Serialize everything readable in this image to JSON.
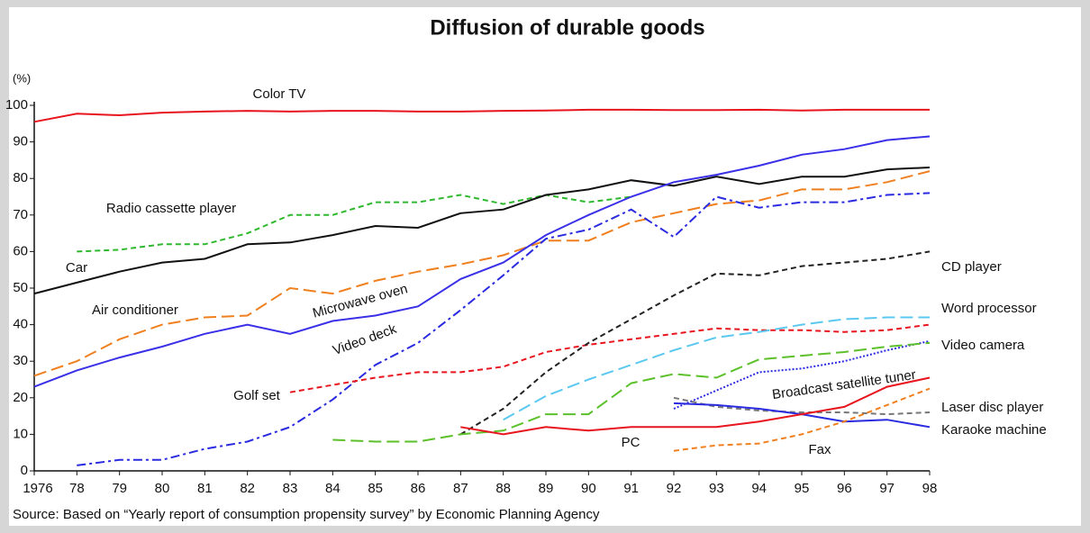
{
  "chart_data": {
    "type": "line",
    "title": "Diffusion of durable goods",
    "y_label": "(%)",
    "source": "Source: Based on “Yearly report of consumption propensity survey” by Economic Planning Agency",
    "categories": [
      "1976",
      "78",
      "79",
      "80",
      "81",
      "82",
      "83",
      "84",
      "85",
      "86",
      "87",
      "88",
      "89",
      "90",
      "91",
      "92",
      "93",
      "94",
      "95",
      "96",
      "97",
      "98"
    ],
    "ylim": [
      0,
      100
    ],
    "yticks": [
      0,
      10,
      20,
      30,
      40,
      50,
      60,
      70,
      80,
      90,
      100
    ],
    "series": [
      {
        "name": "Color TV",
        "color": "#e8141e",
        "style": "solid",
        "values": [
          95.5,
          97.7,
          97.3,
          98,
          98.3,
          98.5,
          98.3,
          98.5,
          98.5,
          98.3,
          98.3,
          98.5,
          98.6,
          98.8,
          98.8,
          98.7,
          98.7,
          98.8,
          98.6,
          98.8,
          98.8,
          98.8
        ]
      },
      {
        "name": "Radio cassette player",
        "color": "#2db82d",
        "style": "dashed",
        "values": [
          null,
          60,
          60.5,
          62,
          62,
          65,
          70,
          70,
          73.5,
          73.5,
          75.5,
          73,
          75.5,
          73.5,
          75,
          null,
          null,
          null,
          null,
          null,
          null,
          null
        ]
      },
      {
        "name": "Car",
        "color": "#111111",
        "style": "solid",
        "values": [
          48.5,
          51.5,
          54.5,
          57,
          58,
          62,
          62.5,
          64.5,
          67,
          66.5,
          70.5,
          71.5,
          75.5,
          77,
          79.5,
          78,
          80.5,
          78.5,
          80.5,
          80.5,
          82.5,
          83
        ]
      },
      {
        "name": "Air conditioner",
        "color": "#f07f1e",
        "style": "longdash",
        "values": [
          26,
          30,
          36,
          40,
          42,
          42.5,
          50,
          48.5,
          52,
          54.5,
          56.5,
          59,
          63,
          63,
          68,
          70.5,
          73,
          74,
          77,
          77,
          79,
          82
        ]
      },
      {
        "name": "Microwave oven",
        "color": "#3a30e8",
        "style": "solid",
        "values": [
          23,
          27.5,
          31,
          34,
          37.5,
          40,
          37.5,
          41,
          42.5,
          45,
          52.5,
          57,
          64.5,
          70,
          75,
          79,
          81,
          83.5,
          86.5,
          88,
          90.5,
          91.5
        ]
      },
      {
        "name": "Video deck",
        "color": "#2a2ae0",
        "style": "dashdot",
        "values": [
          null,
          1.5,
          3,
          3,
          6,
          8,
          12,
          19.5,
          29,
          35,
          44,
          53.5,
          63.5,
          66,
          71.5,
          64,
          75,
          72,
          73.5,
          73.5,
          75.5,
          76
        ]
      },
      {
        "name": "Golf set",
        "color": "#e8141e",
        "style": "dashed",
        "values": [
          null,
          null,
          null,
          null,
          null,
          null,
          21.5,
          23.5,
          25.5,
          27,
          27,
          28.5,
          32.5,
          34.5,
          36,
          37.5,
          39,
          38.5,
          38.5,
          38,
          38.5,
          40
        ]
      },
      {
        "name": "CD player",
        "color": "#222222",
        "style": "dashed",
        "values": [
          null,
          null,
          null,
          null,
          null,
          null,
          null,
          null,
          null,
          null,
          10,
          17,
          27,
          35,
          41.5,
          48,
          54,
          53.5,
          56,
          57,
          58,
          60
        ]
      },
      {
        "name": "Word processor",
        "color": "#5bc8f0",
        "style": "longdash",
        "values": [
          null,
          null,
          null,
          null,
          null,
          null,
          null,
          null,
          null,
          null,
          null,
          14,
          20.5,
          25,
          29,
          33,
          36.5,
          38,
          40,
          41.5,
          42,
          42
        ]
      },
      {
        "name": "Video camera",
        "color": "#2a2ae0",
        "style": "dotted",
        "values": [
          null,
          null,
          null,
          null,
          null,
          null,
          null,
          null,
          null,
          null,
          null,
          null,
          null,
          null,
          null,
          17,
          22,
          27,
          28,
          30,
          33,
          35.5
        ]
      },
      {
        "name": "Broadcast satellite tuner",
        "color": "#5cc02a",
        "style": "longdash",
        "values": [
          null,
          null,
          null,
          null,
          null,
          null,
          null,
          8.5,
          8,
          8,
          10,
          11,
          15.5,
          15.5,
          24,
          26.5,
          25.5,
          30.5,
          31.5,
          32.5,
          34,
          35
        ]
      },
      {
        "name": "Laser disc player",
        "color": "#777777",
        "style": "dashed",
        "values": [
          null,
          null,
          null,
          null,
          null,
          null,
          null,
          null,
          null,
          null,
          null,
          null,
          null,
          null,
          null,
          20,
          17.5,
          16.5,
          16,
          16,
          15.5,
          16
        ]
      },
      {
        "name": "Karaoke machine",
        "color": "#2a2ae0",
        "style": "solid",
        "values": [
          null,
          null,
          null,
          null,
          null,
          null,
          null,
          null,
          null,
          null,
          null,
          null,
          null,
          null,
          null,
          18.5,
          18,
          17,
          15.5,
          13.5,
          14,
          12
        ]
      },
      {
        "name": "PC",
        "color": "#e8141e",
        "style": "solid",
        "values": [
          null,
          null,
          null,
          null,
          null,
          null,
          null,
          null,
          null,
          null,
          12,
          10,
          12,
          11,
          12,
          12,
          12,
          13.5,
          15.5,
          17.5,
          23,
          25.5
        ]
      },
      {
        "name": "Fax",
        "color": "#f07f1e",
        "style": "dashed",
        "values": [
          null,
          null,
          null,
          null,
          null,
          null,
          null,
          null,
          null,
          null,
          null,
          null,
          null,
          null,
          null,
          5.5,
          7,
          7.5,
          10,
          13.5,
          18,
          22.5
        ]
      }
    ]
  }
}
